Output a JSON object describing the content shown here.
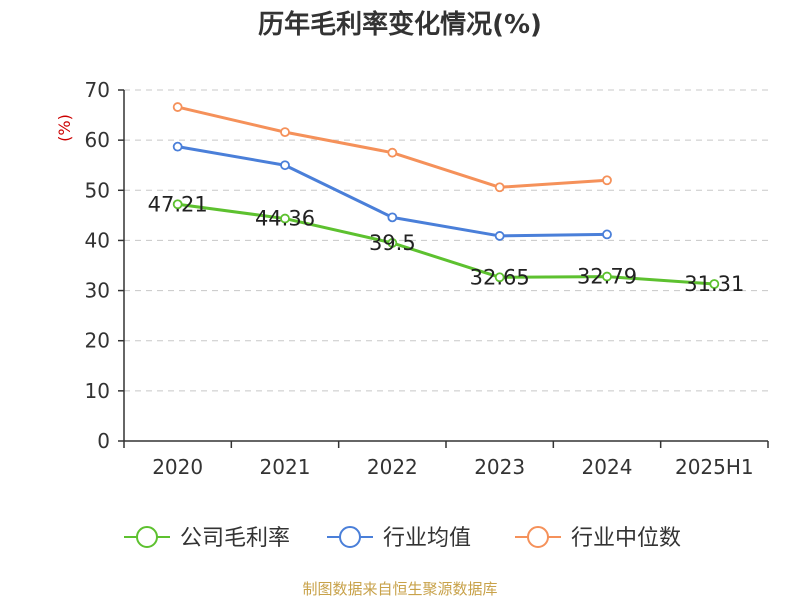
{
  "title": "历年毛利率变化情况(%)",
  "source": "制图数据来自恒生聚源数据库",
  "chart_data": {
    "type": "line",
    "title": "历年毛利率变化情况(%)",
    "xlabel": "",
    "ylabel": "(%)",
    "ylim": [
      0,
      70
    ],
    "yticks": [
      0,
      10,
      20,
      30,
      40,
      50,
      60,
      70
    ],
    "categories": [
      "2020",
      "2021",
      "2022",
      "2023",
      "2024",
      "2025H1"
    ],
    "grid": true,
    "legend_position": "bottom",
    "series": [
      {
        "name": "公司毛利率",
        "color": "#5dc12f",
        "values": [
          47.21,
          44.36,
          39.5,
          32.65,
          32.79,
          31.31
        ],
        "labels": [
          "47.21",
          "44.36",
          "39.5",
          "32.65",
          "32.79",
          "31.31"
        ]
      },
      {
        "name": "行业均值",
        "color": "#4a7fd9",
        "values": [
          58.7,
          55.0,
          44.6,
          40.9,
          41.2,
          null
        ]
      },
      {
        "name": "行业中位数",
        "color": "#f5915a",
        "values": [
          66.6,
          61.6,
          57.5,
          50.6,
          52.0,
          null
        ]
      }
    ]
  }
}
